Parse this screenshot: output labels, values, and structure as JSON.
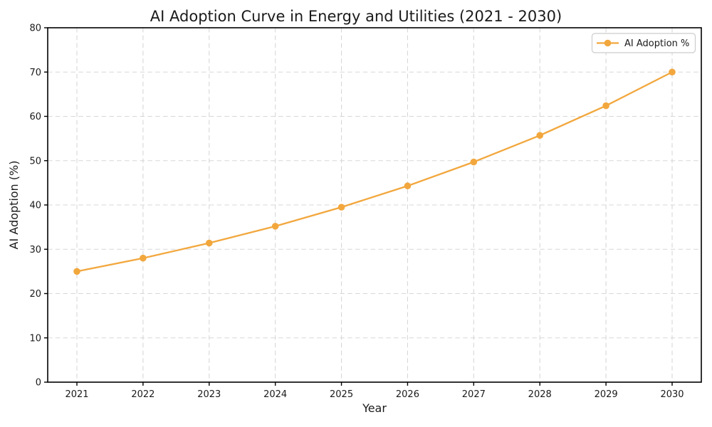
{
  "chart_data": {
    "type": "line",
    "title": "AI Adoption Curve in Energy and Utilities (2021 - 2030)",
    "xlabel": "Year",
    "ylabel": "AI Adoption (%)",
    "categories": [
      "2021",
      "2022",
      "2023",
      "2024",
      "2025",
      "2026",
      "2027",
      "2028",
      "2029",
      "2030"
    ],
    "series": [
      {
        "name": "AI Adoption %",
        "values": [
          25.0,
          28.0,
          31.4,
          35.2,
          39.5,
          44.3,
          49.7,
          55.7,
          62.4,
          70.0
        ],
        "color": "#F2A73D",
        "marker": "circle"
      }
    ],
    "ylim": [
      0,
      80
    ],
    "yticks": [
      0,
      10,
      20,
      30,
      40,
      50,
      60,
      70,
      80
    ],
    "grid": true,
    "grid_style": "dashed",
    "legend_position": "upper right",
    "legend_labels": [
      "AI Adoption %"
    ]
  },
  "colors": {
    "line": "#F2A73D",
    "grid": "#d7d7d7",
    "spine": "#000000",
    "text": "#1a1a1a",
    "legend_border": "#cccccc",
    "legend_bg": "#ffffff",
    "background": "#ffffff"
  }
}
